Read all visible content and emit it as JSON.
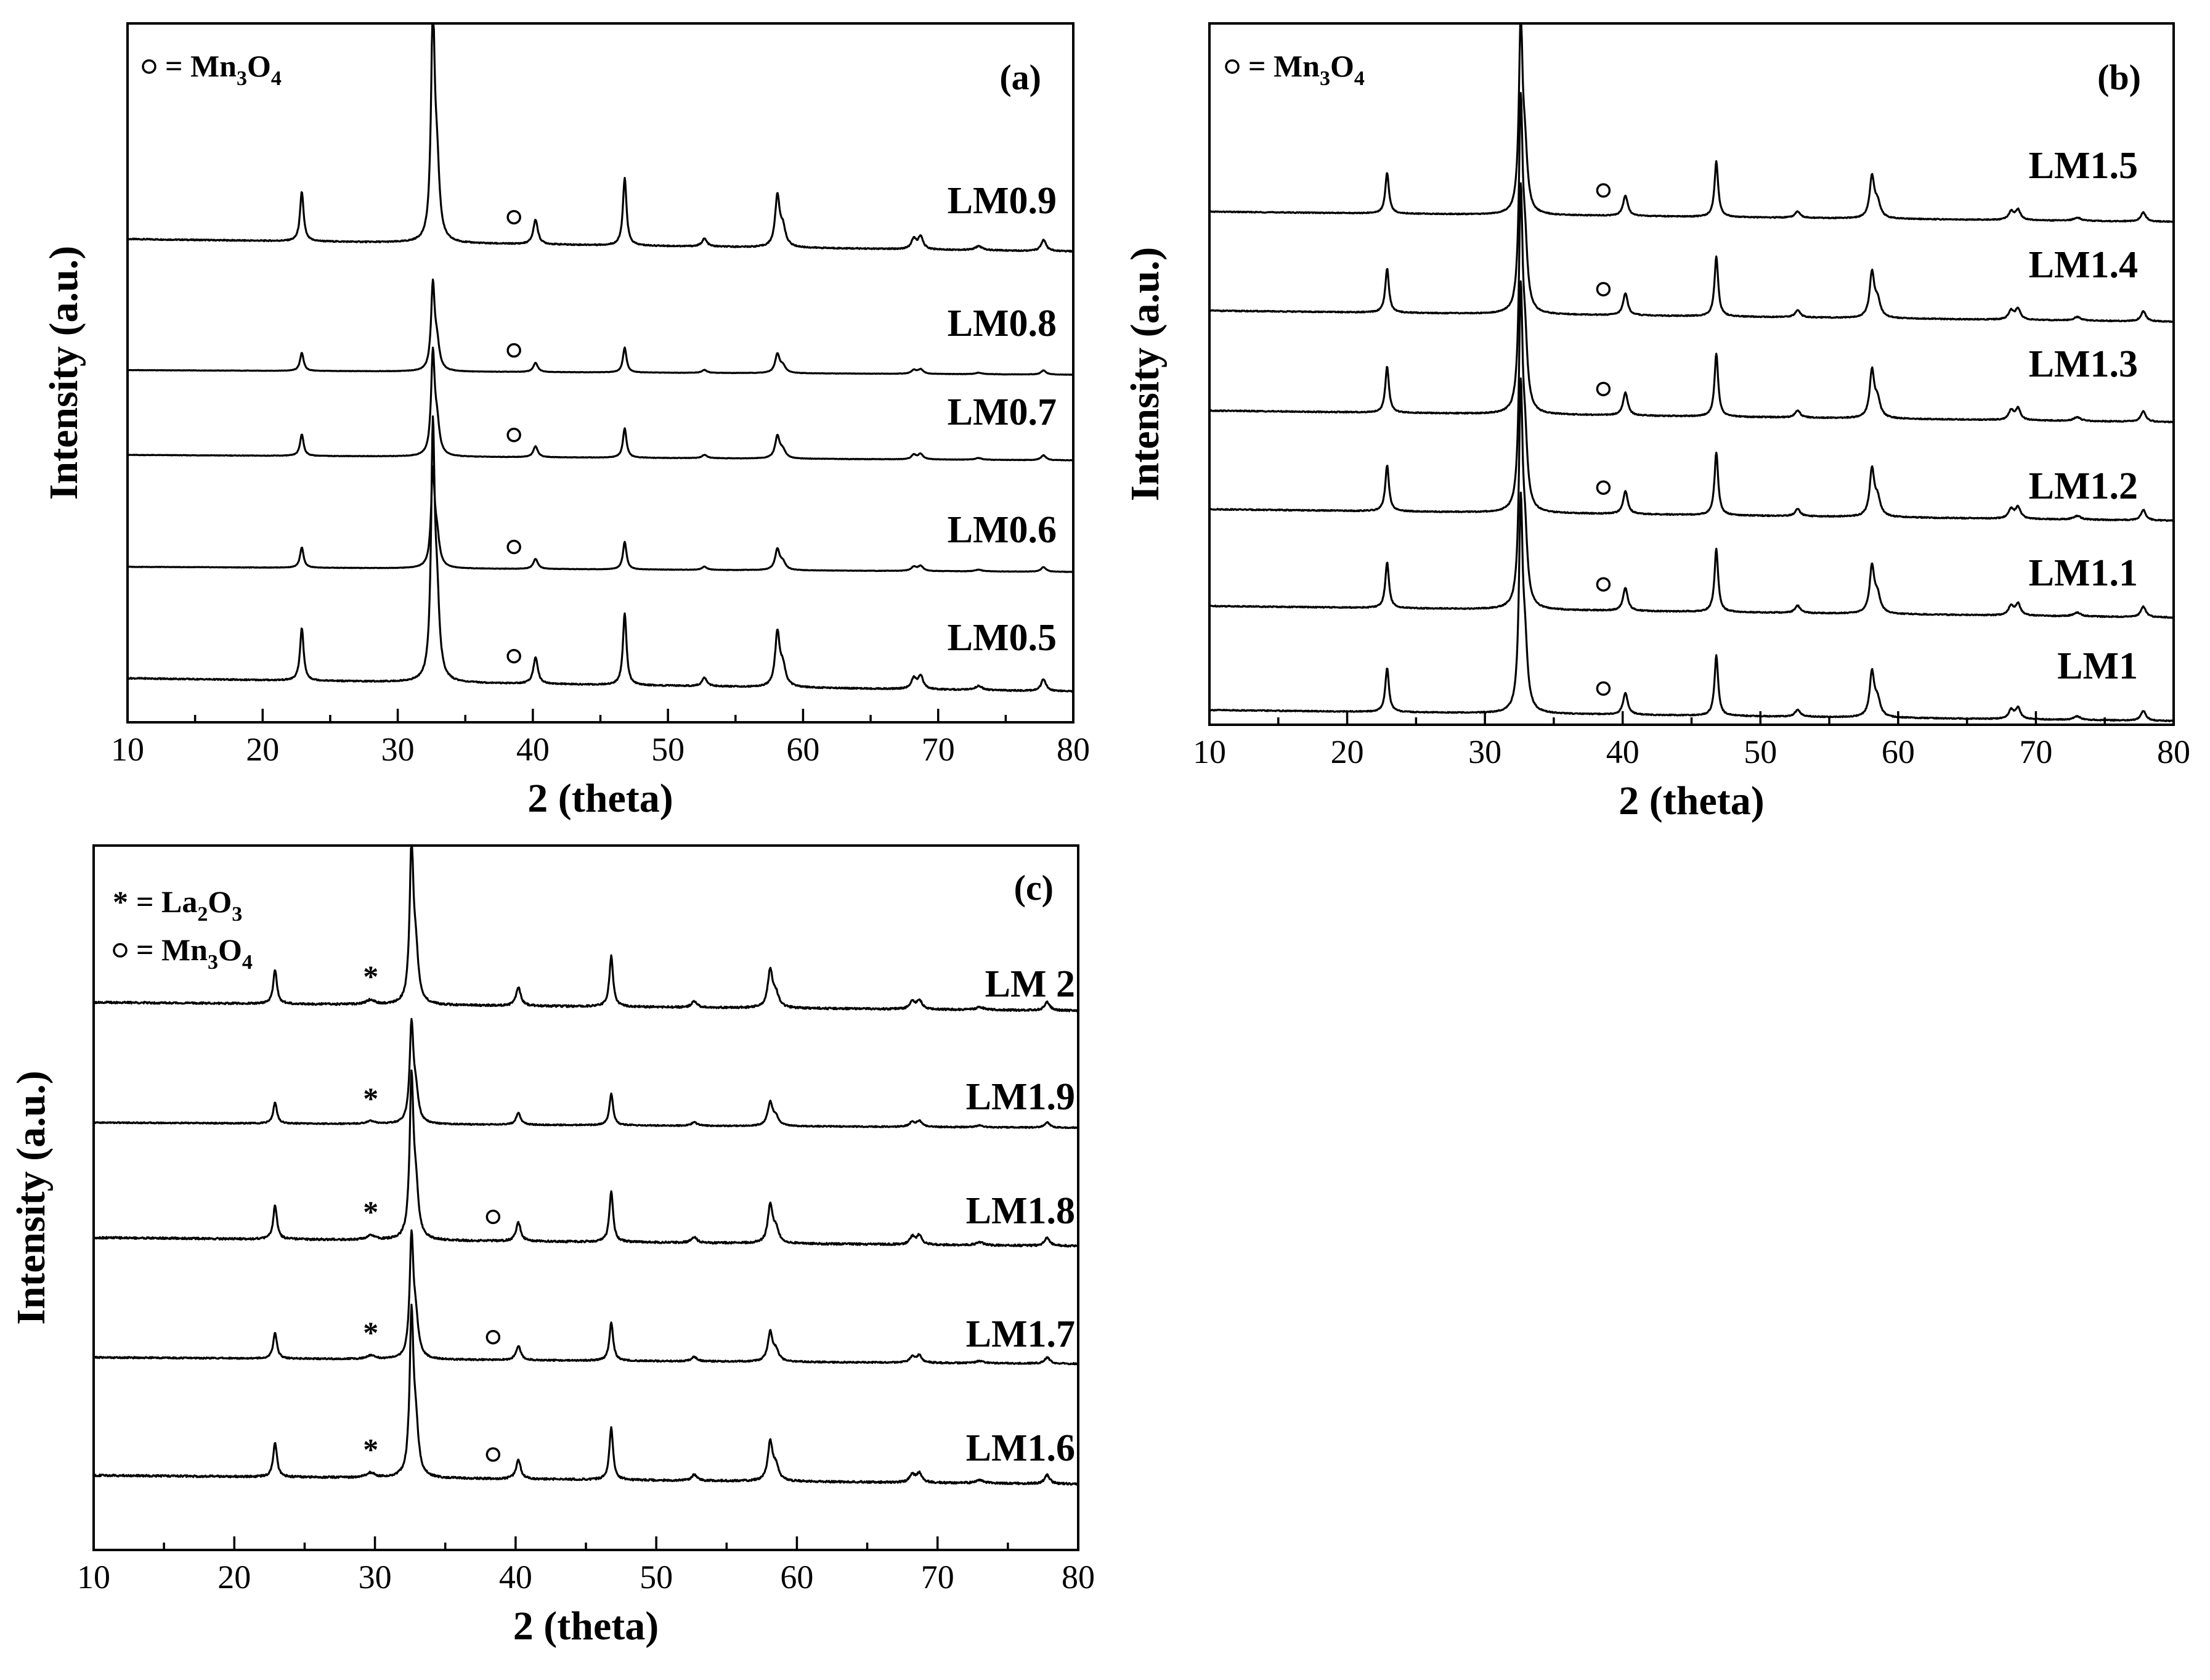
{
  "chart_data": [
    {
      "type": "line",
      "panel": "(a)",
      "xlabel": "2 (theta)",
      "ylabel": "Intensity (a.u.)",
      "xlim": [
        10,
        80
      ],
      "xticks": [
        "10",
        "20",
        "30",
        "40",
        "50",
        "60",
        "70",
        "80"
      ],
      "legend": [
        {
          "symbol": "○",
          "text": "= Mn",
          "sub1": "3",
          "mid": "O",
          "sub2": "4"
        }
      ],
      "series": [
        {
          "name": "LM0.9",
          "mn3o4_marker": true,
          "la2o3_marker": false
        },
        {
          "name": "LM0.8",
          "mn3o4_marker": true,
          "la2o3_marker": false
        },
        {
          "name": "LM0.7",
          "mn3o4_marker": true,
          "la2o3_marker": false
        },
        {
          "name": "LM0.6",
          "mn3o4_marker": true,
          "la2o3_marker": false
        },
        {
          "name": "LM0.5",
          "mn3o4_marker": true,
          "la2o3_marker": false
        }
      ]
    },
    {
      "type": "line",
      "panel": "(b)",
      "xlabel": "2 (theta)",
      "ylabel": "Intensity (a.u.)",
      "xlim": [
        10,
        80
      ],
      "xticks": [
        "10",
        "20",
        "30",
        "40",
        "50",
        "60",
        "70",
        "80"
      ],
      "legend": [
        {
          "symbol": "○",
          "text": "= Mn",
          "sub1": "3",
          "mid": "O",
          "sub2": "4"
        }
      ],
      "series": [
        {
          "name": "LM1.5",
          "mn3o4_marker": true,
          "la2o3_marker": false
        },
        {
          "name": "LM1.4",
          "mn3o4_marker": true,
          "la2o3_marker": false
        },
        {
          "name": "LM1.3",
          "mn3o4_marker": true,
          "la2o3_marker": false
        },
        {
          "name": "LM1.2",
          "mn3o4_marker": true,
          "la2o3_marker": false
        },
        {
          "name": "LM1.1",
          "mn3o4_marker": true,
          "la2o3_marker": false
        },
        {
          "name": "LM1",
          "mn3o4_marker": true,
          "la2o3_marker": false
        }
      ]
    },
    {
      "type": "line",
      "panel": "(c)",
      "xlabel": "2 (theta)",
      "ylabel": "Intensity (a.u.)",
      "xlim": [
        10,
        80
      ],
      "xticks": [
        "10",
        "20",
        "30",
        "40",
        "50",
        "60",
        "70",
        "80"
      ],
      "legend": [
        {
          "symbol": "*",
          "text": "= La",
          "sub1": "2",
          "mid": "O",
          "sub2": "3"
        },
        {
          "symbol": "○",
          "text": "= Mn",
          "sub1": "3",
          "mid": "O",
          "sub2": "4"
        }
      ],
      "series": [
        {
          "name": "LM 2",
          "mn3o4_marker": false,
          "la2o3_marker": true
        },
        {
          "name": "LM1.9",
          "mn3o4_marker": false,
          "la2o3_marker": true
        },
        {
          "name": "LM1.8",
          "mn3o4_marker": true,
          "la2o3_marker": true
        },
        {
          "name": "LM1.7",
          "mn3o4_marker": true,
          "la2o3_marker": true
        },
        {
          "name": "LM1.6",
          "mn3o4_marker": true,
          "la2o3_marker": true
        }
      ]
    }
  ]
}
